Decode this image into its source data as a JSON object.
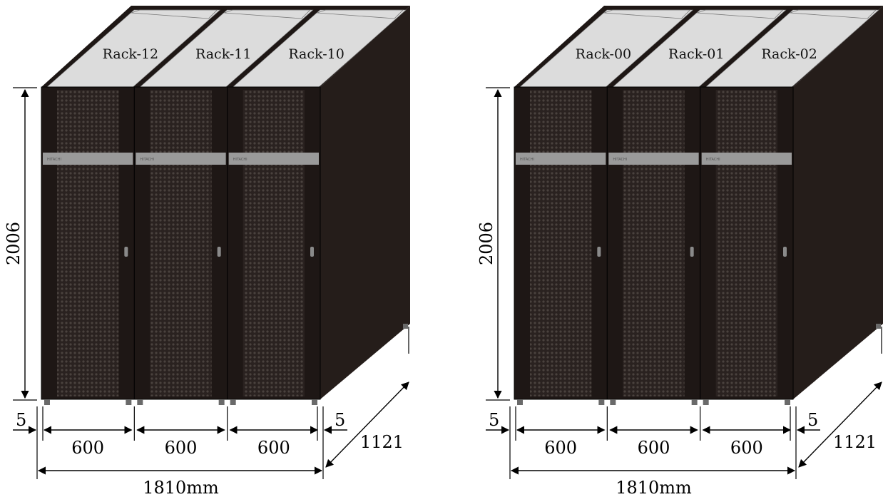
{
  "groups": [
    {
      "height_label": "2006",
      "rack_labels": [
        "Rack-12",
        "Rack-11",
        "Rack-10"
      ],
      "width_labels": [
        "600",
        "600",
        "600"
      ],
      "left_gap": "5",
      "right_gap": "5",
      "depth_label": "1121",
      "total_label": "1810mm",
      "logo_texts": [
        "HITACHI",
        "HITACHI",
        "HITACHI"
      ]
    },
    {
      "height_label": "2006",
      "rack_labels": [
        "Rack-00",
        "Rack-01",
        "Rack-02"
      ],
      "width_labels": [
        "600",
        "600",
        "600"
      ],
      "left_gap": "5",
      "right_gap": "5",
      "depth_label": "1121",
      "total_label": "1810mm",
      "logo_texts": [
        "HITACHI",
        "HITACHI",
        "HITACHI"
      ]
    }
  ],
  "colors": {
    "cabinet_front": "#1e1715",
    "cabinet_side": "#251d1a",
    "top_panel": "#dcdcdc",
    "badge_strip": "#9a9a9a",
    "mesh": "#3a3330"
  }
}
